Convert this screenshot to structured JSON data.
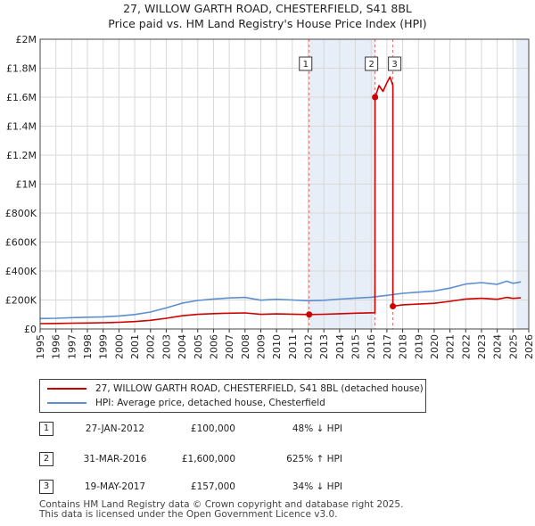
{
  "header": {
    "title": "27, WILLOW GARTH ROAD, CHESTERFIELD, S41 8BL",
    "subtitle": "Price paid vs. HM Land Registry's House Price Index (HPI)"
  },
  "colors": {
    "property": "#cc0000",
    "hpi": "#5b8fd0",
    "shade": "#e8eef8",
    "grid": "#d8d8d8"
  },
  "chart_data": {
    "type": "line",
    "title": "Price paid vs. HM Land Registry's House Price Index (HPI)",
    "xlim": [
      1995,
      2026
    ],
    "ylim": [
      0,
      2000000
    ],
    "x_ticks": [
      1995,
      1996,
      1997,
      1998,
      1999,
      2000,
      2001,
      2002,
      2003,
      2004,
      2005,
      2006,
      2007,
      2008,
      2009,
      2010,
      2011,
      2012,
      2013,
      2014,
      2015,
      2016,
      2017,
      2018,
      2019,
      2020,
      2021,
      2022,
      2023,
      2024,
      2025,
      2026
    ],
    "x_tick_labels": [
      "1995",
      "1996",
      "1997",
      "1998",
      "1999",
      "2000",
      "2001",
      "2002",
      "2003",
      "2004",
      "2005",
      "2006",
      "2007",
      "2008",
      "2009",
      "2010",
      "2011",
      "2012",
      "2013",
      "2014",
      "2015",
      "2016",
      "2017",
      "2018",
      "2019",
      "2020",
      "2021",
      "2022",
      "2023",
      "2024",
      "2025",
      "2026"
    ],
    "y_ticks": [
      0,
      200000,
      400000,
      600000,
      800000,
      1000000,
      1200000,
      1400000,
      1600000,
      1800000,
      2000000
    ],
    "y_tick_labels": [
      "£0",
      "£200K",
      "£400K",
      "£600K",
      "£800K",
      "£1M",
      "£1.2M",
      "£1.4M",
      "£1.6M",
      "£1.8M",
      "£2M"
    ],
    "shaded_ranges": [
      [
        2012.07,
        2016.25
      ],
      [
        2025.2,
        2026
      ]
    ],
    "series": [
      {
        "name": "HPI: Average price, detached house, Chesterfield",
        "x": [
          1995,
          1996,
          1997,
          1998,
          1999,
          2000,
          2001,
          2002,
          2003,
          2004,
          2005,
          2006,
          2007,
          2008,
          2009,
          2010,
          2011,
          2012,
          2013,
          2014,
          2015,
          2016,
          2017,
          2018,
          2019,
          2020,
          2021,
          2022,
          2023,
          2024,
          2024.6,
          2025,
          2025.5
        ],
        "values": [
          72000,
          74000,
          78000,
          81000,
          84000,
          90000,
          100000,
          117000,
          145000,
          178000,
          197000,
          207000,
          214000,
          218000,
          199000,
          205000,
          200000,
          195000,
          198000,
          206000,
          213000,
          219000,
          232000,
          246000,
          254000,
          262000,
          282000,
          310000,
          320000,
          308000,
          330000,
          315000,
          325000
        ]
      },
      {
        "name": "27, WILLOW GARTH ROAD, CHESTERFIELD, S41 8BL (detached house)",
        "x": [
          1995,
          1996,
          1997,
          1998,
          1999,
          2000,
          2001,
          2002,
          2003,
          2004,
          2005,
          2006,
          2007,
          2008,
          2009,
          2010,
          2011,
          2012.07,
          2013,
          2014,
          2015,
          2016.24,
          2016.25,
          2016.5,
          2016.75,
          2017,
          2017.2,
          2017.38,
          2017.38,
          2018,
          2019,
          2020,
          2021,
          2022,
          2023,
          2024,
          2024.6,
          2025,
          2025.5
        ],
        "values": [
          37000,
          38000,
          40000,
          41000,
          43000,
          46000,
          51000,
          60000,
          74000,
          91000,
          101000,
          106000,
          109000,
          111000,
          101000,
          104000,
          102000,
          100000,
          101500,
          105500,
          109000,
          112000,
          1600000,
          1680000,
          1640000,
          1700000,
          1740000,
          1680000,
          157000,
          167000,
          172000,
          177000,
          191000,
          207000,
          212000,
          205000,
          218000,
          211000,
          215000
        ]
      }
    ],
    "markers": [
      {
        "label": "1",
        "x": 2012.07,
        "y": 100000
      },
      {
        "label": "2",
        "x": 2016.25,
        "y": 1600000
      },
      {
        "label": "3",
        "x": 2017.38,
        "y": 157000
      }
    ]
  },
  "legend": {
    "property_label": "27, WILLOW GARTH ROAD, CHESTERFIELD, S41 8BL (detached house)",
    "hpi_label": "HPI: Average price, detached house, Chesterfield"
  },
  "sales": [
    {
      "num": "1",
      "date": "27-JAN-2012",
      "price": "£100,000",
      "hpi": "48% ↓ HPI"
    },
    {
      "num": "2",
      "date": "31-MAR-2016",
      "price": "£1,600,000",
      "hpi": "625% ↑ HPI"
    },
    {
      "num": "3",
      "date": "19-MAY-2017",
      "price": "£157,000",
      "hpi": "34% ↓ HPI"
    }
  ],
  "footer": {
    "line1": "Contains HM Land Registry data © Crown copyright and database right 2025.",
    "line2": "This data is licensed under the Open Government Licence v3.0."
  }
}
